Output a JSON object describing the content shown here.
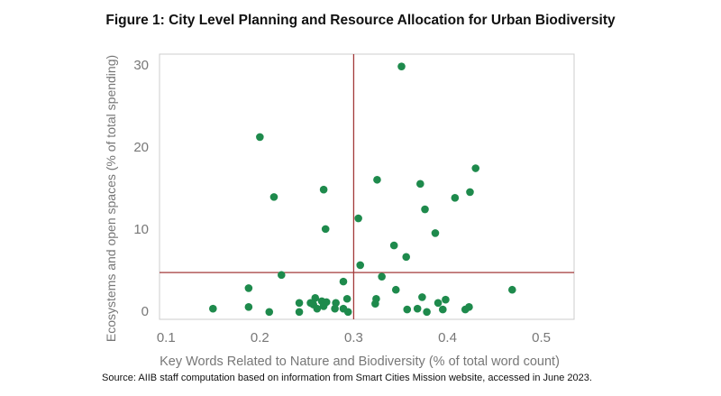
{
  "colors": {
    "points": "#1e8a4c",
    "reference_lines": "#a33a3a",
    "axis_text": "#777777",
    "frame": "#cccccc"
  },
  "chart_data": {
    "type": "scatter",
    "title": "Figure 1: City Level Planning and Resource Allocation for Urban Biodiversity",
    "xlabel": "Key Words Related to Nature and Biodiversity (% of total word count)",
    "ylabel": "Ecosystems and open spaces (% of total spending)",
    "xlim": [
      0.093,
      0.535
    ],
    "ylim": [
      -1.0,
      31.3
    ],
    "xticks": [
      0.1,
      0.2,
      0.3,
      0.4,
      0.5
    ],
    "xtick_labels": [
      "0.1",
      "0.2",
      "0.3",
      "0.4",
      "0.5"
    ],
    "yticks": [
      0,
      10,
      20,
      30
    ],
    "ytick_labels": [
      "0",
      "10",
      "20",
      "30"
    ],
    "grid": false,
    "reference_lines": {
      "x": 0.3,
      "y": 4.7
    },
    "source": "Source: AIIB staff computation based on information from Smart Cities Mission website, accessed in June 2023.",
    "points": [
      {
        "x": 0.351,
        "y": 29.8
      },
      {
        "x": 0.2,
        "y": 21.2
      },
      {
        "x": 0.43,
        "y": 17.4
      },
      {
        "x": 0.325,
        "y": 16.0
      },
      {
        "x": 0.371,
        "y": 15.5
      },
      {
        "x": 0.268,
        "y": 14.8
      },
      {
        "x": 0.424,
        "y": 14.5
      },
      {
        "x": 0.215,
        "y": 13.9
      },
      {
        "x": 0.408,
        "y": 13.8
      },
      {
        "x": 0.376,
        "y": 12.4
      },
      {
        "x": 0.305,
        "y": 11.3
      },
      {
        "x": 0.27,
        "y": 10.0
      },
      {
        "x": 0.387,
        "y": 9.5
      },
      {
        "x": 0.343,
        "y": 8.0
      },
      {
        "x": 0.356,
        "y": 6.6
      },
      {
        "x": 0.307,
        "y": 5.6
      },
      {
        "x": 0.223,
        "y": 4.4
      },
      {
        "x": 0.33,
        "y": 4.2
      },
      {
        "x": 0.289,
        "y": 3.6
      },
      {
        "x": 0.188,
        "y": 2.8
      },
      {
        "x": 0.345,
        "y": 2.6
      },
      {
        "x": 0.469,
        "y": 2.6
      },
      {
        "x": 0.373,
        "y": 1.7
      },
      {
        "x": 0.259,
        "y": 1.6
      },
      {
        "x": 0.293,
        "y": 1.5
      },
      {
        "x": 0.324,
        "y": 1.5
      },
      {
        "x": 0.398,
        "y": 1.4
      },
      {
        "x": 0.266,
        "y": 1.2
      },
      {
        "x": 0.242,
        "y": 1.0
      },
      {
        "x": 0.254,
        "y": 1.0
      },
      {
        "x": 0.271,
        "y": 1.1
      },
      {
        "x": 0.281,
        "y": 1.0
      },
      {
        "x": 0.39,
        "y": 1.0
      },
      {
        "x": 0.323,
        "y": 0.9
      },
      {
        "x": 0.257,
        "y": 0.8
      },
      {
        "x": 0.188,
        "y": 0.5
      },
      {
        "x": 0.268,
        "y": 0.6
      },
      {
        "x": 0.423,
        "y": 0.5
      },
      {
        "x": 0.15,
        "y": 0.3
      },
      {
        "x": 0.261,
        "y": 0.3
      },
      {
        "x": 0.28,
        "y": 0.3
      },
      {
        "x": 0.289,
        "y": 0.3
      },
      {
        "x": 0.357,
        "y": 0.2
      },
      {
        "x": 0.368,
        "y": 0.3
      },
      {
        "x": 0.395,
        "y": 0.2
      },
      {
        "x": 0.419,
        "y": 0.2
      },
      {
        "x": 0.242,
        "y": -0.1
      },
      {
        "x": 0.294,
        "y": -0.1
      },
      {
        "x": 0.378,
        "y": -0.1
      },
      {
        "x": 0.21,
        "y": -0.1
      }
    ]
  }
}
